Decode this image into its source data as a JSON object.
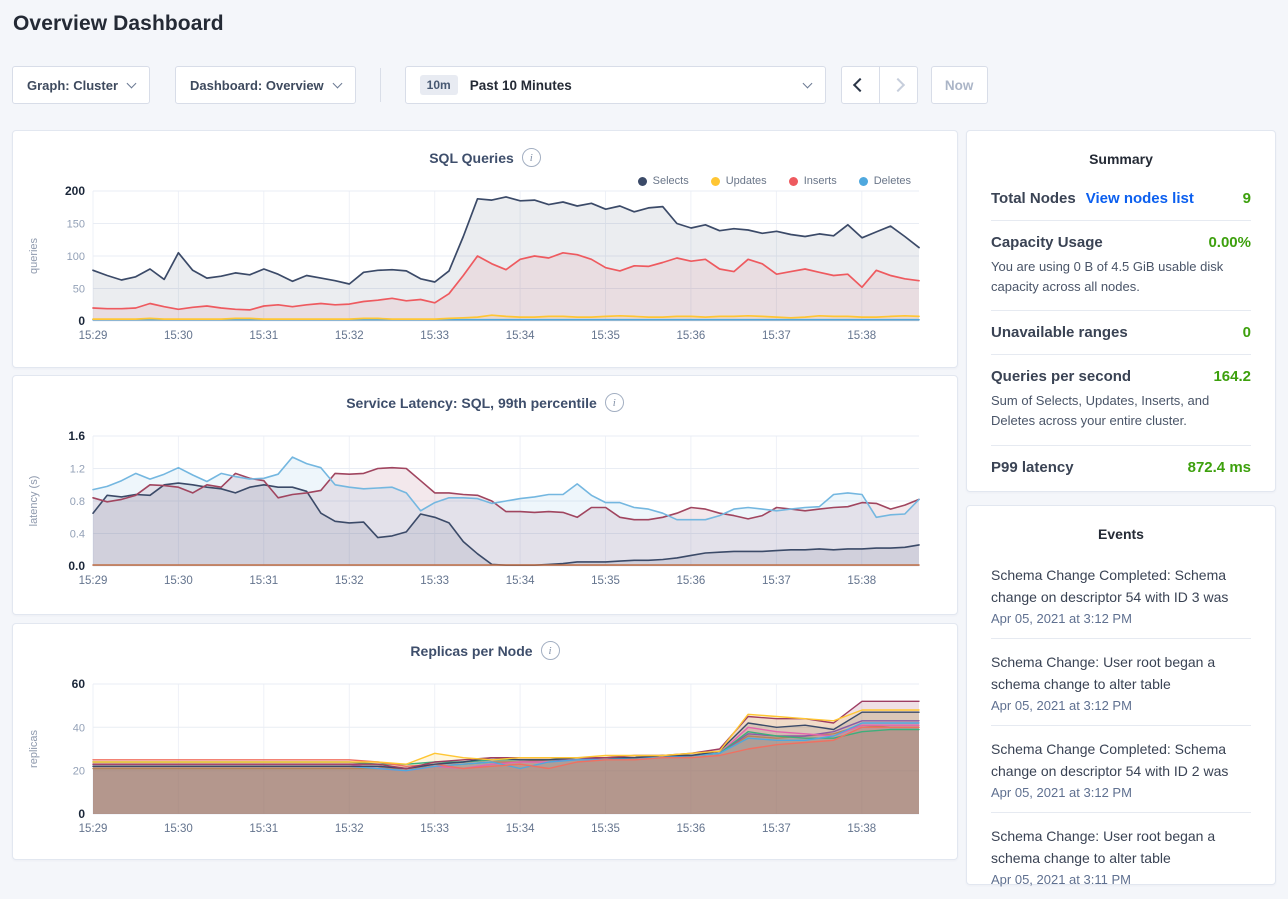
{
  "page": {
    "title": "Overview Dashboard"
  },
  "toolbar": {
    "graph_label": "Graph: Cluster",
    "dashboard_label": "Dashboard: Overview",
    "time_badge": "10m",
    "time_range_label": "Past 10 Minutes",
    "now_label": "Now"
  },
  "summary": {
    "title": "Summary",
    "value_color": "#3DA00D",
    "link_color": "#0B5FEF",
    "rows": [
      {
        "label": "Total Nodes",
        "link": "View nodes list",
        "value": "9"
      },
      {
        "label": "Capacity Usage",
        "value": "0.00%",
        "description": "You are using 0 B of 4.5 GiB usable disk capacity across all nodes."
      },
      {
        "label": "Unavailable ranges",
        "value": "0"
      },
      {
        "label": "Queries per second",
        "value": "164.2",
        "description": "Sum of Selects, Updates, Inserts, and Deletes across your entire cluster."
      },
      {
        "label": "P99 latency",
        "value": "872.4 ms"
      }
    ]
  },
  "events": {
    "title": "Events",
    "items": [
      {
        "message": "Schema Change Completed: Schema change on descriptor 54 with ID 3 was",
        "time": "Apr 05, 2021 at 3:12 PM"
      },
      {
        "message": "Schema Change: User root began a schema change to alter table",
        "time": "Apr 05, 2021 at 3:12 PM"
      },
      {
        "message": "Schema Change Completed: Schema change on descriptor 54 with ID 2 was",
        "time": "Apr 05, 2021 at 3:12 PM"
      },
      {
        "message": "Schema Change: User root began a schema change to alter table",
        "time": "Apr 05, 2021 at 3:11 PM"
      }
    ]
  },
  "chart_data": [
    {
      "type": "area",
      "title": "SQL Queries",
      "ylabel": "queries",
      "ylim": [
        0,
        200
      ],
      "yticks": [
        "0",
        "50",
        "100",
        "150",
        "200"
      ],
      "x_tick_labels": [
        "15:29",
        "15:30",
        "15:31",
        "15:32",
        "15:33",
        "15:34",
        "15:35",
        "15:36",
        "15:37",
        "15:38"
      ],
      "total_minutes": 9.67,
      "fill_opacity": 0.1,
      "line_width": 1.7,
      "legend": true,
      "draw_order": [
        3,
        1,
        2,
        0
      ],
      "series": [
        {
          "name": "Selects",
          "color": "#3B4A68",
          "values": [
            78,
            70,
            63,
            68,
            80,
            64,
            105,
            78,
            66,
            69,
            74,
            71,
            80,
            72,
            61,
            70,
            66,
            62,
            57,
            75,
            78,
            79,
            77,
            65,
            60,
            77,
            130,
            188,
            186,
            191,
            185,
            186,
            179,
            183,
            177,
            181,
            172,
            177,
            168,
            174,
            176,
            150,
            143,
            148,
            139,
            142,
            140,
            135,
            138,
            133,
            130,
            134,
            131,
            148,
            128,
            137,
            146,
            130,
            113
          ]
        },
        {
          "name": "Updates",
          "color": "#FFC633",
          "values": [
            3,
            3,
            3,
            3,
            4,
            3,
            3,
            3,
            3,
            3,
            4,
            4,
            3,
            3,
            3,
            3,
            3,
            3,
            3,
            4,
            4,
            3,
            3,
            3,
            3,
            4,
            5,
            6,
            9,
            7,
            6,
            6,
            7,
            7,
            6,
            6,
            7,
            8,
            7,
            6,
            6,
            7,
            7,
            6,
            7,
            7,
            8,
            7,
            6,
            5,
            6,
            8,
            7,
            7,
            6,
            6,
            7,
            8,
            7
          ]
        },
        {
          "name": "Inserts",
          "color": "#EE5A5F",
          "values": [
            20,
            19,
            19,
            20,
            27,
            22,
            18,
            21,
            23,
            20,
            18,
            17,
            23,
            25,
            22,
            25,
            27,
            25,
            26,
            30,
            32,
            35,
            31,
            33,
            28,
            42,
            70,
            100,
            88,
            79,
            95,
            100,
            97,
            105,
            102,
            95,
            82,
            77,
            85,
            84,
            90,
            97,
            92,
            95,
            80,
            76,
            95,
            88,
            72,
            76,
            80,
            75,
            70,
            72,
            52,
            78,
            70,
            65,
            62
          ]
        },
        {
          "name": "Deletes",
          "color": "#4FA8DE",
          "values": [
            2,
            2
          ]
        }
      ]
    },
    {
      "type": "area",
      "title": "Service Latency: SQL, 99th percentile",
      "ylabel": "latency (s)",
      "ylim": [
        0,
        1.6
      ],
      "yticks": [
        "0.0",
        "0.4",
        "0.8",
        "1.2",
        "1.6"
      ],
      "x_tick_labels": [
        "15:29",
        "15:30",
        "15:31",
        "15:32",
        "15:33",
        "15:34",
        "15:35",
        "15:36",
        "15:37",
        "15:38"
      ],
      "total_minutes": 9.67,
      "fill_opacity": 0.12,
      "line_width": 1.6,
      "legend": false,
      "draw_order": [
        0,
        1,
        2,
        3
      ],
      "series": [
        {
          "color": "#3B4A68",
          "values": [
            0.65,
            0.87,
            0.85,
            0.88,
            0.87,
            1.0,
            1.02,
            1.0,
            0.97,
            0.95,
            0.9,
            0.97,
            1.0,
            0.97,
            0.97,
            0.92,
            0.65,
            0.55,
            0.53,
            0.54,
            0.35,
            0.37,
            0.42,
            0.64,
            0.6,
            0.53,
            0.3,
            0.15,
            0.02,
            0.01,
            0.01,
            0.01,
            0.02,
            0.03,
            0.05,
            0.05,
            0.05,
            0.06,
            0.07,
            0.07,
            0.08,
            0.1,
            0.13,
            0.16,
            0.17,
            0.18,
            0.18,
            0.18,
            0.19,
            0.2,
            0.2,
            0.21,
            0.2,
            0.21,
            0.21,
            0.22,
            0.22,
            0.23,
            0.26
          ]
        },
        {
          "color": "#A0455F",
          "values": [
            0.84,
            0.79,
            0.82,
            0.87,
            1.0,
            0.99,
            0.97,
            0.9,
            1.0,
            0.97,
            1.14,
            1.08,
            1.05,
            0.84,
            0.88,
            0.9,
            0.93,
            1.14,
            1.13,
            1.14,
            1.2,
            1.21,
            1.2,
            1.05,
            0.9,
            0.9,
            0.88,
            0.87,
            0.8,
            0.67,
            0.67,
            0.66,
            0.67,
            0.66,
            0.6,
            0.72,
            0.72,
            0.6,
            0.57,
            0.57,
            0.6,
            0.65,
            0.72,
            0.7,
            0.65,
            0.62,
            0.58,
            0.62,
            0.72,
            0.7,
            0.68,
            0.7,
            0.72,
            0.73,
            0.78,
            0.77,
            0.7,
            0.75,
            0.82
          ]
        },
        {
          "color": "#74B7E0",
          "values": [
            0.94,
            0.98,
            1.05,
            1.14,
            1.07,
            1.13,
            1.21,
            1.12,
            1.04,
            1.14,
            1.1,
            1.07,
            1.08,
            1.13,
            1.34,
            1.26,
            1.21,
            1.0,
            0.97,
            0.95,
            0.96,
            0.97,
            0.9,
            0.68,
            0.78,
            0.84,
            0.84,
            0.83,
            0.77,
            0.8,
            0.83,
            0.85,
            0.88,
            0.88,
            1.01,
            0.87,
            0.78,
            0.78,
            0.72,
            0.7,
            0.65,
            0.57,
            0.57,
            0.57,
            0.62,
            0.7,
            0.72,
            0.7,
            0.68,
            0.7,
            0.72,
            0.73,
            0.88,
            0.9,
            0.88,
            0.6,
            0.63,
            0.64,
            0.82
          ]
        },
        {
          "color": "#C07047",
          "values": [
            0.012,
            0.012
          ]
        }
      ]
    },
    {
      "type": "area",
      "title": "Replicas per Node",
      "ylabel": "replicas",
      "ylim": [
        0,
        60
      ],
      "yticks": [
        "0",
        "20",
        "40",
        "60"
      ],
      "x_tick_labels": [
        "15:29",
        "15:30",
        "15:31",
        "15:32",
        "15:33",
        "15:34",
        "15:35",
        "15:36",
        "15:37",
        "15:38"
      ],
      "total_minutes": 9.67,
      "fill_opacity": 0.16,
      "line_width": 1.4,
      "legend": false,
      "draw_order": [
        0,
        1,
        2,
        3,
        4,
        5,
        6,
        7,
        8
      ],
      "series": [
        {
          "color": "#B5835A",
          "values": [
            21,
            21,
            21,
            21,
            21,
            21,
            21,
            21,
            21,
            21,
            21,
            21,
            22,
            23,
            24,
            24,
            25,
            25,
            25,
            26,
            26,
            27,
            28,
            36,
            35,
            36,
            37,
            41,
            40,
            40
          ]
        },
        {
          "color": "#8A5BA6",
          "values": [
            22,
            22,
            22,
            22,
            22,
            22,
            22,
            22,
            22,
            22,
            22,
            21,
            23,
            24,
            25,
            25,
            25,
            25,
            26,
            26,
            27,
            27,
            28,
            37,
            36,
            36,
            38,
            43,
            43,
            43
          ]
        },
        {
          "color": "#E464AE",
          "values": [
            23,
            23,
            23,
            23,
            23,
            23,
            23,
            23,
            23,
            23,
            21,
            20,
            22,
            21,
            23,
            24,
            24,
            25,
            25,
            26,
            26,
            27,
            28,
            40,
            38,
            37,
            36,
            41,
            41,
            41
          ]
        },
        {
          "color": "#3EAE7B",
          "values": [
            24,
            24,
            24,
            24,
            24,
            24,
            24,
            24,
            24,
            24,
            23,
            23,
            24,
            24,
            25,
            25,
            25,
            26,
            26,
            26,
            27,
            27,
            28,
            38,
            36,
            35,
            35,
            38,
            39,
            39
          ]
        },
        {
          "color": "#4FA8DE",
          "values": [
            22,
            22,
            22,
            22,
            22,
            22,
            22,
            22,
            22,
            22,
            21,
            20,
            22,
            23,
            24,
            21,
            24,
            25,
            25,
            26,
            26,
            27,
            28,
            35,
            34,
            34,
            36,
            42,
            42,
            42
          ]
        },
        {
          "color": "#F07061",
          "values": [
            25,
            25,
            25,
            25,
            25,
            25,
            25,
            25,
            25,
            25,
            24,
            22,
            23,
            21,
            22,
            23,
            21,
            24,
            25,
            25,
            26,
            26,
            27,
            30,
            32,
            33,
            34,
            40,
            40,
            40
          ]
        },
        {
          "color": "#3B4A68",
          "values": [
            22,
            22,
            22,
            22,
            22,
            22,
            22,
            22,
            22,
            22,
            22,
            21,
            23,
            24,
            26,
            25,
            25,
            26,
            26,
            26,
            27,
            27,
            29,
            42,
            40,
            41,
            39,
            47,
            47,
            47
          ]
        },
        {
          "color": "#9E3D63",
          "values": [
            23,
            23,
            23,
            23,
            23,
            23,
            23,
            23,
            23,
            23,
            23,
            21,
            24,
            25,
            26,
            26,
            26,
            26,
            26,
            27,
            27,
            28,
            30,
            45,
            44,
            44,
            42,
            52,
            52,
            52
          ]
        },
        {
          "color": "#FFC633",
          "values": [
            24,
            24,
            24,
            24,
            24,
            24,
            24,
            24,
            24,
            24,
            24,
            23,
            28,
            26,
            25,
            26,
            26,
            26,
            27,
            27,
            27,
            28,
            29,
            46,
            45,
            44,
            43,
            48,
            48,
            48
          ]
        }
      ]
    }
  ]
}
